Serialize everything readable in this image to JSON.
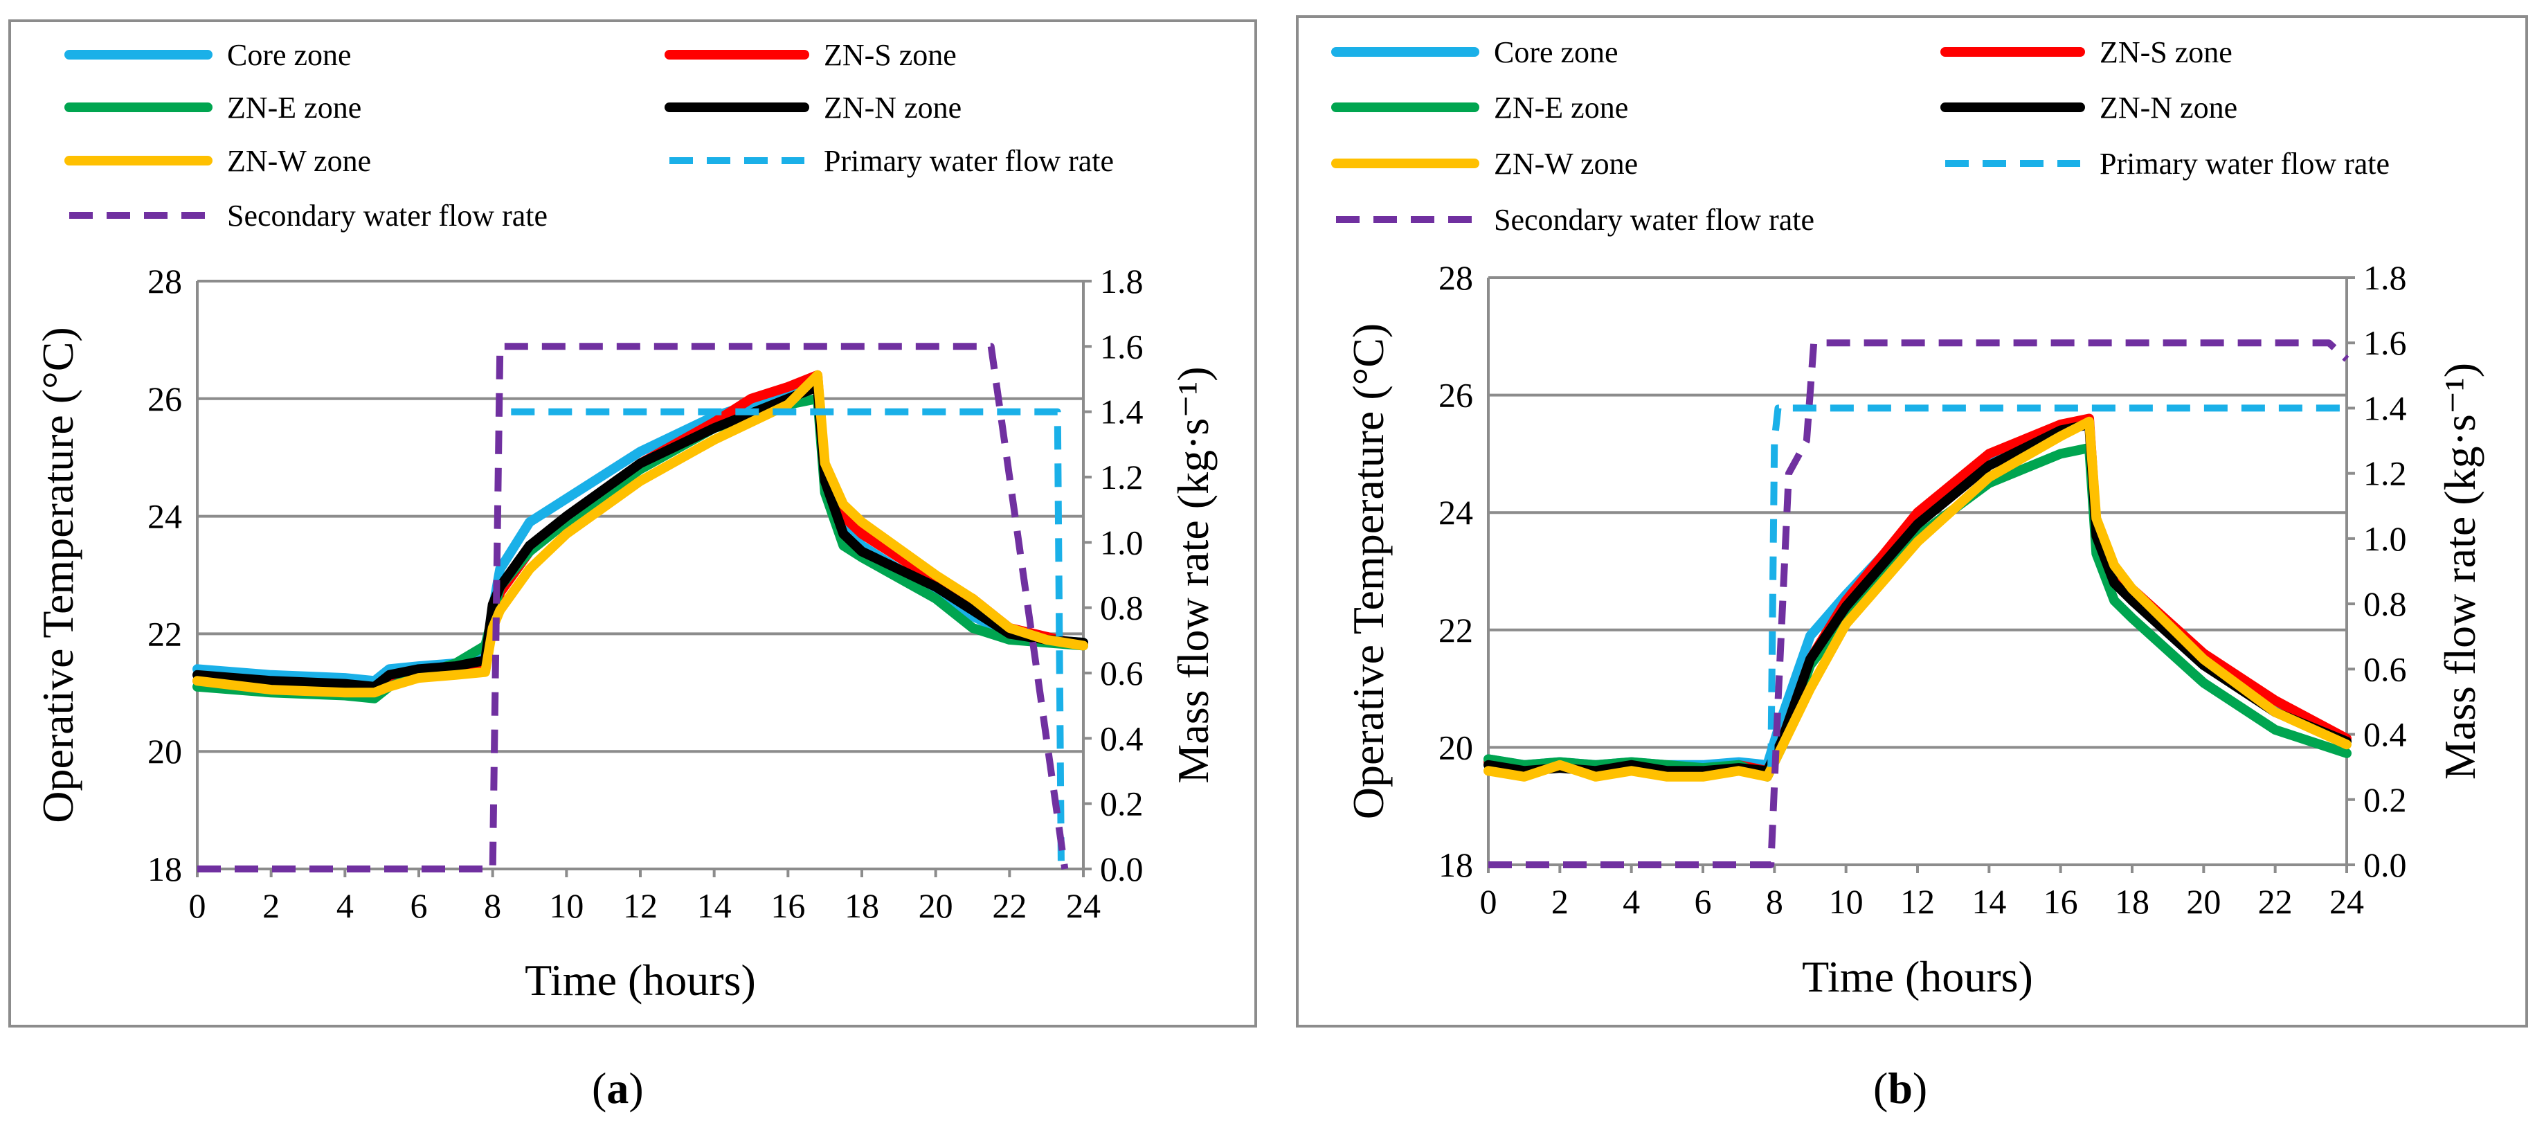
{
  "colors": {
    "core": "#1ab0e8",
    "zn_s": "#ff0000",
    "zn_e": "#00a550",
    "zn_n": "#000000",
    "zn_w": "#ffc000",
    "primary": "#1ab0e8",
    "secondary": "#7030a0"
  },
  "captions": [
    "a",
    "b"
  ],
  "chart_data": [
    {
      "type": "line",
      "x_label": "Time (hours)",
      "y_label": "Operative Temperature (°C)",
      "y2_label": "Mass flow rate (kg·s⁻¹)",
      "xlim": [
        0,
        24
      ],
      "ylim": [
        18,
        28
      ],
      "y2lim": [
        0,
        1.8
      ],
      "x_ticks": [
        "0",
        "2",
        "4",
        "6",
        "8",
        "10",
        "12",
        "14",
        "16",
        "18",
        "20",
        "22",
        "24"
      ],
      "y_ticks": [
        "18",
        "20",
        "22",
        "24",
        "26",
        "28"
      ],
      "y2_ticks": [
        "0.0",
        "0.2",
        "0.4",
        "0.6",
        "0.8",
        "1.0",
        "1.2",
        "1.4",
        "1.6",
        "1.8"
      ],
      "grid": "horizontal",
      "legend_position": "top",
      "series": [
        {
          "name": "Core zone",
          "key": "core",
          "axis": "left",
          "style": "solid",
          "x": [
            0,
            2,
            4,
            4.8,
            5.2,
            6,
            7,
            7.8,
            8,
            8.2,
            9,
            10,
            12,
            14,
            16,
            16.8,
            17,
            17.5,
            18,
            20,
            21,
            22,
            23,
            24
          ],
          "y": [
            21.4,
            21.3,
            21.25,
            21.2,
            21.4,
            21.45,
            21.5,
            21.6,
            22.4,
            23.1,
            23.9,
            24.3,
            25.1,
            25.7,
            26.1,
            26.3,
            24.8,
            23.8,
            23.5,
            22.7,
            22.3,
            22,
            21.9,
            21.85
          ]
        },
        {
          "name": "ZN-S zone",
          "key": "zn_s",
          "axis": "right",
          "style": "solid",
          "x": [
            0,
            2,
            4,
            4.8,
            5.2,
            6,
            7,
            7.8,
            8,
            8.2,
            9,
            10,
            12,
            14,
            15,
            16,
            16.8,
            17,
            17.5,
            18,
            20,
            21,
            22,
            23,
            24
          ],
          "y": [
            21.2,
            21.1,
            21.05,
            21,
            21.2,
            21.3,
            21.4,
            21.5,
            22.1,
            22.7,
            23.4,
            23.95,
            24.9,
            25.6,
            26,
            26.2,
            26.4,
            24.7,
            24,
            23.7,
            22.9,
            22.6,
            22.1,
            21.95,
            21.8
          ]
        },
        {
          "name": "ZN-E zone",
          "key": "zn_e",
          "axis": "left",
          "style": "solid",
          "x": [
            0,
            2,
            4,
            4.8,
            5.2,
            6,
            7,
            7.8,
            8,
            8.2,
            9,
            10,
            12,
            14,
            16,
            16.8,
            17,
            17.5,
            18,
            20,
            21,
            22,
            23,
            24
          ],
          "y": [
            21.1,
            21,
            20.95,
            20.9,
            21.1,
            21.3,
            21.5,
            21.8,
            22.3,
            22.8,
            23.4,
            23.9,
            24.8,
            25.5,
            25.9,
            26,
            24.4,
            23.5,
            23.3,
            22.6,
            22.1,
            21.9,
            21.85,
            21.8
          ]
        },
        {
          "name": "ZN-N zone",
          "key": "zn_n",
          "axis": "left",
          "style": "solid",
          "x": [
            0,
            2,
            4,
            4.8,
            5.2,
            6,
            7,
            7.8,
            8,
            8.2,
            9,
            10,
            12,
            14,
            16,
            16.8,
            17,
            17.5,
            18,
            20,
            21,
            22,
            23,
            24
          ],
          "y": [
            21.3,
            21.2,
            21.15,
            21.1,
            21.3,
            21.4,
            21.45,
            21.55,
            22.5,
            22.8,
            23.5,
            24,
            24.9,
            25.5,
            26,
            26.2,
            24.6,
            23.7,
            23.4,
            22.8,
            22.4,
            22,
            21.9,
            21.85
          ]
        },
        {
          "name": "ZN-W zone",
          "key": "zn_w",
          "axis": "left",
          "style": "solid",
          "x": [
            0,
            2,
            4,
            4.8,
            5.2,
            6,
            7,
            7.8,
            8,
            8.2,
            9,
            10,
            12,
            14,
            16,
            16.8,
            17,
            17.5,
            18,
            20,
            21,
            22,
            23,
            24
          ],
          "y": [
            21.2,
            21.05,
            21,
            21,
            21.1,
            21.25,
            21.3,
            21.35,
            22.1,
            22.4,
            23.1,
            23.7,
            24.6,
            25.3,
            25.9,
            26.4,
            24.9,
            24.2,
            23.9,
            23,
            22.6,
            22.1,
            21.9,
            21.8
          ]
        },
        {
          "name": "Primary water flow rate",
          "key": "primary",
          "axis": "right",
          "style": "dashed",
          "x": [
            0,
            8,
            8.5,
            23.3,
            23.4,
            24
          ],
          "y": [
            null,
            null,
            1.4,
            1.4,
            0,
            null
          ]
        },
        {
          "name": "Secondary water flow rate",
          "key": "secondary",
          "axis": "right",
          "style": "dashed",
          "x": [
            0,
            8,
            8.2,
            21.5,
            23.5
          ],
          "y": [
            0,
            0,
            1.6,
            1.6,
            0
          ]
        }
      ]
    },
    {
      "type": "line",
      "x_label": "Time (hours)",
      "y_label": "Operative Temperature (°C)",
      "y2_label": "Mass flow rate (kg·s⁻¹)",
      "xlim": [
        0,
        24
      ],
      "ylim": [
        18,
        28
      ],
      "y2lim": [
        0,
        1.8
      ],
      "x_ticks": [
        "0",
        "2",
        "4",
        "6",
        "8",
        "10",
        "12",
        "14",
        "16",
        "18",
        "20",
        "22",
        "24"
      ],
      "y_ticks": [
        "18",
        "20",
        "22",
        "24",
        "26",
        "28"
      ],
      "y2_ticks": [
        "0.0",
        "0.2",
        "0.4",
        "0.6",
        "0.8",
        "1.0",
        "1.2",
        "1.4",
        "1.6",
        "1.8"
      ],
      "grid": "horizontal",
      "legend_position": "top",
      "series": [
        {
          "name": "Core zone",
          "key": "core",
          "axis": "left",
          "style": "solid",
          "x": [
            0,
            1,
            2,
            3,
            4,
            5,
            6,
            7,
            7.8,
            8.2,
            9,
            10,
            12,
            14,
            16,
            16.8,
            17,
            17.5,
            18,
            20,
            22,
            24
          ],
          "y": [
            19.8,
            19.7,
            19.75,
            19.7,
            19.75,
            19.7,
            19.7,
            19.75,
            19.7,
            20.5,
            21.9,
            22.6,
            23.9,
            24.9,
            25.4,
            25.55,
            23.7,
            22.9,
            22.5,
            21.4,
            20.7,
            20.1
          ]
        },
        {
          "name": "ZN-S zone",
          "key": "zn_s",
          "axis": "left",
          "style": "solid",
          "x": [
            0,
            1,
            2,
            3,
            4,
            5,
            6,
            7,
            7.8,
            8.2,
            9,
            10,
            12,
            14,
            16,
            16.8,
            17,
            17.5,
            18,
            20,
            22,
            24
          ],
          "y": [
            19.75,
            19.6,
            19.7,
            19.6,
            19.7,
            19.65,
            19.6,
            19.7,
            19.6,
            20.1,
            21.5,
            22.5,
            24,
            25,
            25.5,
            25.6,
            23.8,
            23,
            22.7,
            21.6,
            20.8,
            20.15
          ]
        },
        {
          "name": "ZN-E zone",
          "key": "zn_e",
          "axis": "left",
          "style": "solid",
          "x": [
            0,
            1,
            2,
            3,
            4,
            5,
            6,
            7,
            7.8,
            8.2,
            9,
            10,
            12,
            14,
            16,
            16.8,
            17,
            17.5,
            18,
            20,
            22,
            24
          ],
          "y": [
            19.8,
            19.7,
            19.75,
            19.7,
            19.75,
            19.7,
            19.65,
            19.7,
            19.5,
            20,
            21.4,
            22.2,
            23.6,
            24.5,
            25,
            25.1,
            23.3,
            22.5,
            22.2,
            21.1,
            20.3,
            19.9
          ]
        },
        {
          "name": "ZN-N zone",
          "key": "zn_n",
          "axis": "left",
          "style": "solid",
          "x": [
            0,
            1,
            2,
            3,
            4,
            5,
            6,
            7,
            7.8,
            8.2,
            9,
            10,
            12,
            14,
            16,
            16.8,
            17,
            17.5,
            18,
            20,
            22,
            24
          ],
          "y": [
            19.7,
            19.6,
            19.65,
            19.6,
            19.7,
            19.6,
            19.6,
            19.65,
            19.6,
            20.1,
            21.5,
            22.4,
            23.8,
            24.8,
            25.4,
            25.5,
            23.6,
            22.8,
            22.5,
            21.4,
            20.6,
            20.1
          ]
        },
        {
          "name": "ZN-W zone",
          "key": "zn_w",
          "axis": "left",
          "style": "solid",
          "x": [
            0,
            1,
            2,
            3,
            4,
            5,
            6,
            7,
            7.8,
            8.2,
            9,
            10,
            12,
            14,
            16,
            16.8,
            17,
            17.5,
            18,
            20,
            22,
            24
          ],
          "y": [
            19.6,
            19.5,
            19.7,
            19.5,
            19.6,
            19.5,
            19.5,
            19.6,
            19.5,
            20.0,
            21.0,
            22.1,
            23.5,
            24.6,
            25.3,
            25.55,
            23.9,
            23.1,
            22.7,
            21.5,
            20.6,
            20.05
          ]
        },
        {
          "name": "Primary water flow rate",
          "key": "primary",
          "axis": "right",
          "style": "dashed",
          "x": [
            7.9,
            8,
            8.1,
            24
          ],
          "y": [
            0.3,
            1.3,
            1.4,
            1.4
          ]
        },
        {
          "name": "Secondary water flow rate",
          "key": "secondary",
          "axis": "right",
          "style": "dashed",
          "x": [
            0,
            7.9,
            8.1,
            8.4,
            8.9,
            9.1,
            23.5,
            24
          ],
          "y": [
            0,
            0,
            0.5,
            1.2,
            1.3,
            1.6,
            1.6,
            1.55
          ]
        }
      ]
    }
  ]
}
